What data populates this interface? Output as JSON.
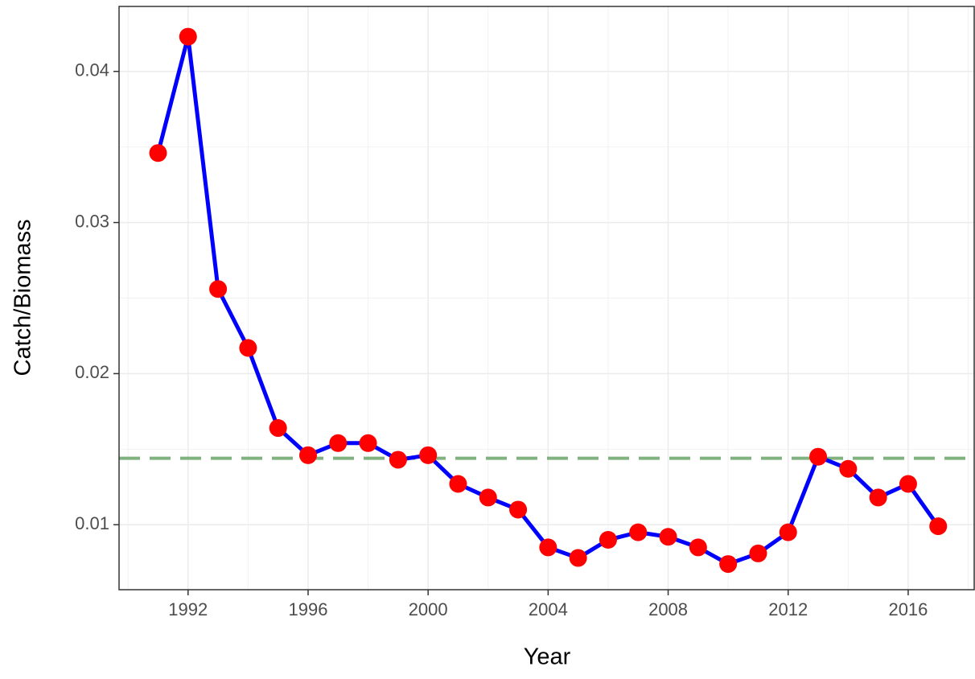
{
  "chart_data": {
    "type": "line",
    "x_label": "Year",
    "y_label": "Catch/Biomass",
    "x": [
      1991,
      1992,
      1993,
      1994,
      1995,
      1996,
      1997,
      1998,
      1999,
      2000,
      2001,
      2002,
      2003,
      2004,
      2005,
      2006,
      2007,
      2008,
      2009,
      2010,
      2011,
      2012,
      2013,
      2014,
      2015,
      2016,
      2017
    ],
    "series": [
      {
        "color": "#0000ff",
        "marker_color": "#ff0000",
        "values": [
          0.0346,
          0.0423,
          0.0256,
          0.0217,
          0.0164,
          0.0146,
          0.0154,
          0.0154,
          0.0143,
          0.0146,
          0.0127,
          0.0118,
          0.011,
          0.0085,
          0.0078,
          0.009,
          0.0095,
          0.0092,
          0.0085,
          0.0074,
          0.0081,
          0.0095,
          0.0145,
          0.0137,
          0.0118,
          0.0127,
          0.0099
        ]
      }
    ],
    "hline": {
      "value": 0.0144,
      "color": "#7fb27f",
      "dashed": true
    },
    "xlim": [
      1989.7,
      2018.2
    ],
    "ylim": [
      0.0057,
      0.0443
    ],
    "xticks": [
      1992,
      1996,
      2000,
      2004,
      2008,
      2012,
      2016
    ],
    "yticks": [
      0.01,
      0.02,
      0.03,
      0.04
    ],
    "x_minor_grid": [
      1990,
      1994,
      1998,
      2002,
      2006,
      2010,
      2014,
      2018
    ],
    "y_minor_grid": [
      0.015,
      0.025,
      0.035
    ],
    "grid": true
  }
}
